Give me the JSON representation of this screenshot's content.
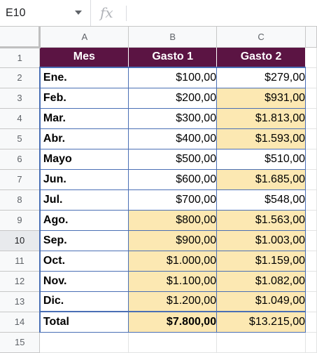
{
  "formula_bar": {
    "name_box": "E10",
    "fx_icon": "fx-icon"
  },
  "columns": [
    "A",
    "B",
    "C"
  ],
  "header": [
    "Mes",
    "Gasto 1",
    "Gasto 2"
  ],
  "rows": [
    {
      "row": "2",
      "mes": "Ene.",
      "g1": "$100,00",
      "g2": "$279,00",
      "g1_hl": false,
      "g2_hl": false
    },
    {
      "row": "3",
      "mes": "Feb.",
      "g1": "$200,00",
      "g2": "$931,00",
      "g1_hl": false,
      "g2_hl": true
    },
    {
      "row": "4",
      "mes": "Mar.",
      "g1": "$300,00",
      "g2": "$1.813,00",
      "g1_hl": false,
      "g2_hl": true
    },
    {
      "row": "5",
      "mes": "Abr.",
      "g1": "$400,00",
      "g2": "$1.593,00",
      "g1_hl": false,
      "g2_hl": true
    },
    {
      "row": "6",
      "mes": "Mayo",
      "g1": "$500,00",
      "g2": "$510,00",
      "g1_hl": false,
      "g2_hl": false
    },
    {
      "row": "7",
      "mes": "Jun.",
      "g1": "$600,00",
      "g2": "$1.685,00",
      "g1_hl": false,
      "g2_hl": true
    },
    {
      "row": "8",
      "mes": "Jul.",
      "g1": "$700,00",
      "g2": "$548,00",
      "g1_hl": false,
      "g2_hl": false
    },
    {
      "row": "9",
      "mes": "Ago.",
      "g1": "$800,00",
      "g2": "$1.563,00",
      "g1_hl": true,
      "g2_hl": true
    },
    {
      "row": "10",
      "mes": "Sep.",
      "g1": "$900,00",
      "g2": "$1.003,00",
      "g1_hl": true,
      "g2_hl": true
    },
    {
      "row": "11",
      "mes": "Oct.",
      "g1": "$1.000,00",
      "g2": "$1.159,00",
      "g1_hl": true,
      "g2_hl": true
    },
    {
      "row": "12",
      "mes": "Nov.",
      "g1": "$1.100,00",
      "g2": "$1.082,00",
      "g1_hl": true,
      "g2_hl": true
    },
    {
      "row": "13",
      "mes": "Dic.",
      "g1": "$1.200,00",
      "g2": "$1.049,00",
      "g1_hl": true,
      "g2_hl": true
    }
  ],
  "total": {
    "row": "14",
    "mes": "Total",
    "g1": "$7.800,00",
    "g2": "$13.215,00"
  },
  "header_row": "1",
  "next_row": "15",
  "colors": {
    "header_bg": "#5b1443",
    "highlight": "#fce8b2",
    "border_blue": "#4a6fb5"
  }
}
